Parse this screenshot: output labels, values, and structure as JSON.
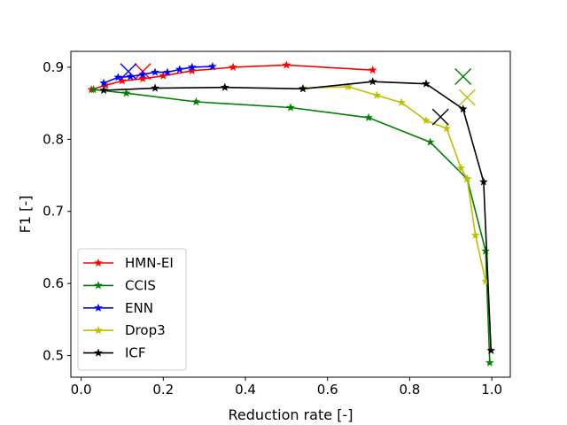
{
  "chart_data": {
    "type": "line",
    "xlabel": "Reduction rate [-]",
    "ylabel": "F1 [-]",
    "xlim": [
      -0.025,
      1.045
    ],
    "ylim": [
      0.47,
      0.922
    ],
    "xticks": [
      0.0,
      0.2,
      0.4,
      0.6,
      0.8,
      1.0
    ],
    "xtick_labels": [
      "0.0",
      "0.2",
      "0.4",
      "0.6",
      "0.8",
      "1.0"
    ],
    "yticks": [
      0.5,
      0.6,
      0.7,
      0.8,
      0.9
    ],
    "ytick_labels": [
      "0.5",
      "0.6",
      "0.7",
      "0.8",
      "0.9"
    ],
    "legend_position": "bottom-left",
    "series": [
      {
        "name": "HMN-EI",
        "color": "#ff0000",
        "x": [
          0.025,
          0.06,
          0.1,
          0.15,
          0.2,
          0.27,
          0.37,
          0.5,
          0.71
        ],
        "y": [
          0.869,
          0.875,
          0.881,
          0.884,
          0.888,
          0.895,
          0.9,
          0.903,
          0.896
        ],
        "cross": [
          0.15,
          0.894
        ]
      },
      {
        "name": "CCIS",
        "color": "#008000",
        "x": [
          0.03,
          0.11,
          0.28,
          0.51,
          0.7,
          0.85,
          0.94,
          0.985,
          0.995
        ],
        "y": [
          0.869,
          0.864,
          0.852,
          0.844,
          0.83,
          0.796,
          0.745,
          0.645,
          0.49
        ],
        "cross": [
          0.93,
          0.887
        ]
      },
      {
        "name": "ENN",
        "color": "#0000ff",
        "x": [
          0.055,
          0.09,
          0.12,
          0.15,
          0.18,
          0.21,
          0.24,
          0.27,
          0.32
        ],
        "y": [
          0.878,
          0.886,
          0.887,
          0.89,
          0.893,
          0.893,
          0.897,
          0.9,
          0.901
        ],
        "cross": [
          0.115,
          0.894
        ]
      },
      {
        "name": "Drop3",
        "color": "#bfbf00",
        "x": [
          0.54,
          0.65,
          0.72,
          0.78,
          0.84,
          0.89,
          0.925,
          0.94,
          0.96,
          0.985
        ],
        "y": [
          0.871,
          0.873,
          0.861,
          0.851,
          0.826,
          0.815,
          0.76,
          0.745,
          0.667,
          0.603
        ],
        "cross": [
          0.94,
          0.858
        ]
      },
      {
        "name": "ICF",
        "color": "#000000",
        "x": [
          0.055,
          0.18,
          0.35,
          0.54,
          0.71,
          0.84,
          0.93,
          0.98,
          0.998
        ],
        "y": [
          0.868,
          0.871,
          0.872,
          0.87,
          0.88,
          0.877,
          0.842,
          0.741,
          0.507
        ],
        "cross": [
          0.875,
          0.831
        ]
      }
    ]
  }
}
